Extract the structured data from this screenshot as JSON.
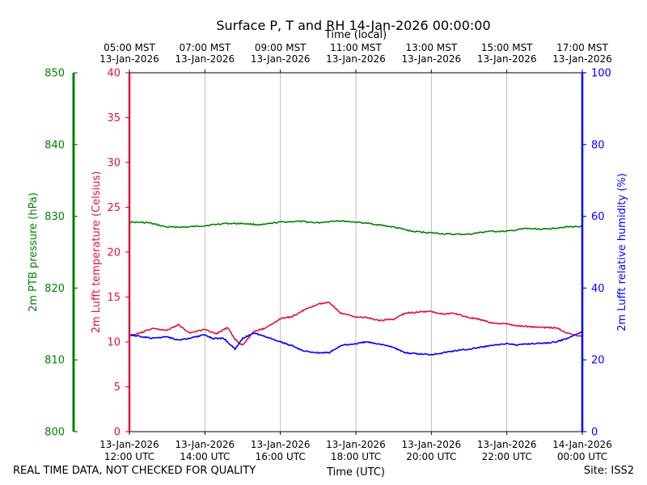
{
  "chart_data": {
    "type": "line",
    "title": "Surface P, T and RH 14-Jan-2026 00:00:00",
    "top_axis_title": "Time (local)",
    "xlabel": "Time (UTC)",
    "top_ticks": [
      {
        "line1": "05:00 MST",
        "line2": "13-Jan-2026",
        "t": 0
      },
      {
        "line1": "07:00 MST",
        "line2": "13-Jan-2026",
        "t": 2
      },
      {
        "line1": "09:00 MST",
        "line2": "13-Jan-2026",
        "t": 4
      },
      {
        "line1": "11:00 MST",
        "line2": "13-Jan-2026",
        "t": 6
      },
      {
        "line1": "13:00 MST",
        "line2": "13-Jan-2026",
        "t": 8
      },
      {
        "line1": "15:00 MST",
        "line2": "13-Jan-2026",
        "t": 10
      },
      {
        "line1": "17:00 MST",
        "line2": "13-Jan-2026",
        "t": 12
      }
    ],
    "bottom_ticks": [
      {
        "line1": "13-Jan-2026",
        "line2": "12:00 UTC",
        "t": 0
      },
      {
        "line1": "13-Jan-2026",
        "line2": "14:00 UTC",
        "t": 2
      },
      {
        "line1": "13-Jan-2026",
        "line2": "16:00 UTC",
        "t": 4
      },
      {
        "line1": "13-Jan-2026",
        "line2": "18:00 UTC",
        "t": 6
      },
      {
        "line1": "13-Jan-2026",
        "line2": "20:00 UTC",
        "t": 8
      },
      {
        "line1": "13-Jan-2026",
        "line2": "22:00 UTC",
        "t": 10
      },
      {
        "line1": "14-Jan-2026",
        "line2": "00:00 UTC",
        "t": 12
      }
    ],
    "xlim": [
      0,
      12
    ],
    "grid": true,
    "axes": [
      {
        "id": "pressure",
        "label": "2m PTB pressure (hPa)",
        "color": "#008000",
        "side": "left-outer",
        "ylim": [
          800,
          850
        ],
        "ticks": [
          "800",
          "810",
          "820",
          "830",
          "840",
          "850"
        ]
      },
      {
        "id": "temperature",
        "label": "2m Lufft temperature (Celsius)",
        "color": "#dc143c",
        "side": "left",
        "ylim": [
          0,
          40
        ],
        "ticks": [
          "0",
          "5",
          "10",
          "15",
          "20",
          "25",
          "30",
          "35",
          "40"
        ]
      },
      {
        "id": "humidity",
        "label": "2m Lufft relative humidity (%)",
        "color": "#0000ff",
        "side": "right",
        "ylim": [
          0,
          100
        ],
        "ticks": [
          "0",
          "20",
          "40",
          "60",
          "80",
          "100"
        ]
      }
    ],
    "series": [
      {
        "name": "2m PTB pressure",
        "axis": "pressure",
        "color": "#008000",
        "x": [
          0,
          0.5,
          1,
          1.5,
          2,
          2.5,
          3,
          3.5,
          4,
          4.5,
          5,
          5.5,
          6,
          6.5,
          7,
          7.5,
          8,
          8.5,
          9,
          9.5,
          10,
          10.5,
          11,
          11.5,
          12
        ],
        "values": [
          829.2,
          829.1,
          828.5,
          828.5,
          828.7,
          829.0,
          829.0,
          828.8,
          829.2,
          829.3,
          829.1,
          829.4,
          829.2,
          828.9,
          828.5,
          827.9,
          827.7,
          827.5,
          827.5,
          827.9,
          827.9,
          828.3,
          828.2,
          828.5,
          828.6
        ]
      },
      {
        "name": "2m Lufft temperature",
        "axis": "temperature",
        "color": "#dc143c",
        "x": [
          0,
          0.3,
          0.6,
          1,
          1.3,
          1.6,
          2,
          2.3,
          2.6,
          2.8,
          3,
          3.3,
          3.6,
          4,
          4.3,
          4.6,
          5,
          5.3,
          5.6,
          6,
          6.3,
          6.6,
          7,
          7.3,
          7.6,
          8,
          8.3,
          8.6,
          9,
          9.3,
          9.6,
          10,
          10.3,
          10.6,
          11,
          11.3,
          11.6,
          12
        ],
        "values": [
          10.7,
          11.0,
          11.5,
          11.3,
          11.9,
          11.0,
          11.4,
          10.9,
          11.6,
          10.3,
          9.6,
          11.2,
          11.5,
          12.6,
          12.8,
          13.5,
          14.2,
          14.4,
          13.2,
          12.8,
          12.7,
          12.4,
          12.5,
          13.2,
          13.3,
          13.4,
          13.1,
          13.2,
          12.7,
          12.5,
          12.1,
          12.0,
          11.8,
          11.7,
          11.6,
          11.6,
          11.0,
          10.6
        ]
      },
      {
        "name": "2m Lufft relative humidity",
        "axis": "humidity",
        "color": "#0000ff",
        "x": [
          0,
          0.3,
          0.6,
          1,
          1.3,
          1.6,
          2,
          2.2,
          2.5,
          2.8,
          3,
          3.3,
          3.6,
          4,
          4.3,
          4.6,
          5,
          5.3,
          5.6,
          6,
          6.3,
          6.6,
          7,
          7.3,
          7.6,
          8,
          8.3,
          8.6,
          9,
          9.3,
          9.6,
          10,
          10.3,
          10.6,
          11,
          11.3,
          11.6,
          12
        ],
        "values": [
          27.0,
          26.5,
          26.0,
          26.5,
          25.5,
          26.0,
          27.0,
          26.0,
          26.0,
          23.0,
          26.0,
          27.5,
          26.5,
          25.0,
          24.0,
          22.5,
          22.0,
          22.0,
          24.0,
          24.5,
          25.0,
          24.5,
          23.5,
          22.0,
          21.7,
          21.5,
          22.0,
          22.5,
          23.0,
          23.5,
          24.0,
          24.5,
          24.2,
          24.5,
          24.7,
          25.0,
          26.0,
          28.0
        ]
      }
    ]
  },
  "footer": {
    "left": "REAL TIME DATA, NOT CHECKED FOR QUALITY",
    "right": "Site: ISS2"
  }
}
